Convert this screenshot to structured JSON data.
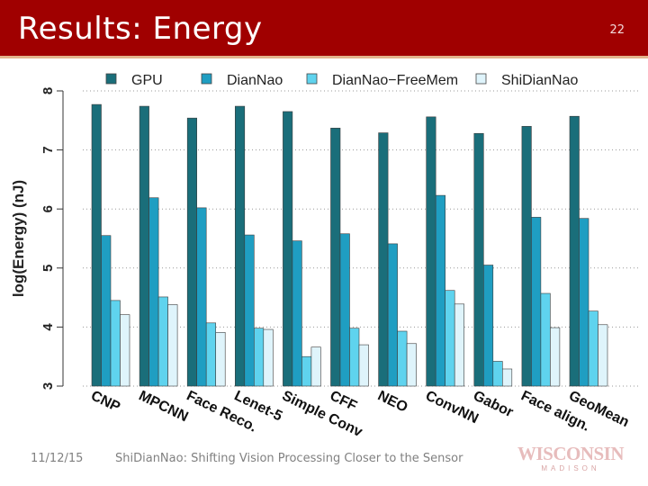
{
  "slide": {
    "title": "Results: Energy",
    "number": "22",
    "footer_date": "11/12/15",
    "footer_caption": "ShiDianNao: Shifting Vision Processing Closer to the Sensor",
    "logo_text": "WISCONSIN",
    "logo_subtext": "MADISON",
    "title_bar_color": "#a00000"
  },
  "chart_data": {
    "type": "bar",
    "title": "",
    "xlabel": "",
    "ylabel": "log(Energy) (nJ)",
    "ylim": [
      3,
      8
    ],
    "yticks": [
      "3",
      "4",
      "5",
      "6",
      "7",
      "8"
    ],
    "grid": true,
    "legend_position": "top",
    "categories": [
      "CNP",
      "MPCNN",
      "Face Reco.",
      "Lenet-5",
      "Simple Conv",
      "CFF",
      "NEO",
      "ConvNN",
      "Gabor",
      "Face align.",
      "GeoMean"
    ],
    "series": [
      {
        "name": "GPU",
        "color": "#1a6e7a",
        "values": [
          7.77,
          7.74,
          7.54,
          7.74,
          7.65,
          7.37,
          7.29,
          7.56,
          7.28,
          7.4,
          7.57
        ]
      },
      {
        "name": "DianNao",
        "color": "#1f9ec2",
        "values": [
          5.55,
          6.19,
          6.02,
          5.56,
          5.46,
          5.58,
          5.41,
          6.23,
          5.05,
          5.86,
          5.84
        ]
      },
      {
        "name": "DianNao−FreeMem",
        "color": "#5fd3ee",
        "values": [
          4.45,
          4.51,
          4.07,
          3.98,
          3.5,
          3.98,
          3.93,
          4.62,
          3.42,
          4.57,
          4.27
        ]
      },
      {
        "name": "ShiDianNao",
        "color": "#dff4fb",
        "values": [
          4.21,
          4.38,
          3.91,
          3.96,
          3.66,
          3.7,
          3.72,
          4.39,
          3.29,
          3.99,
          4.04
        ]
      }
    ]
  }
}
